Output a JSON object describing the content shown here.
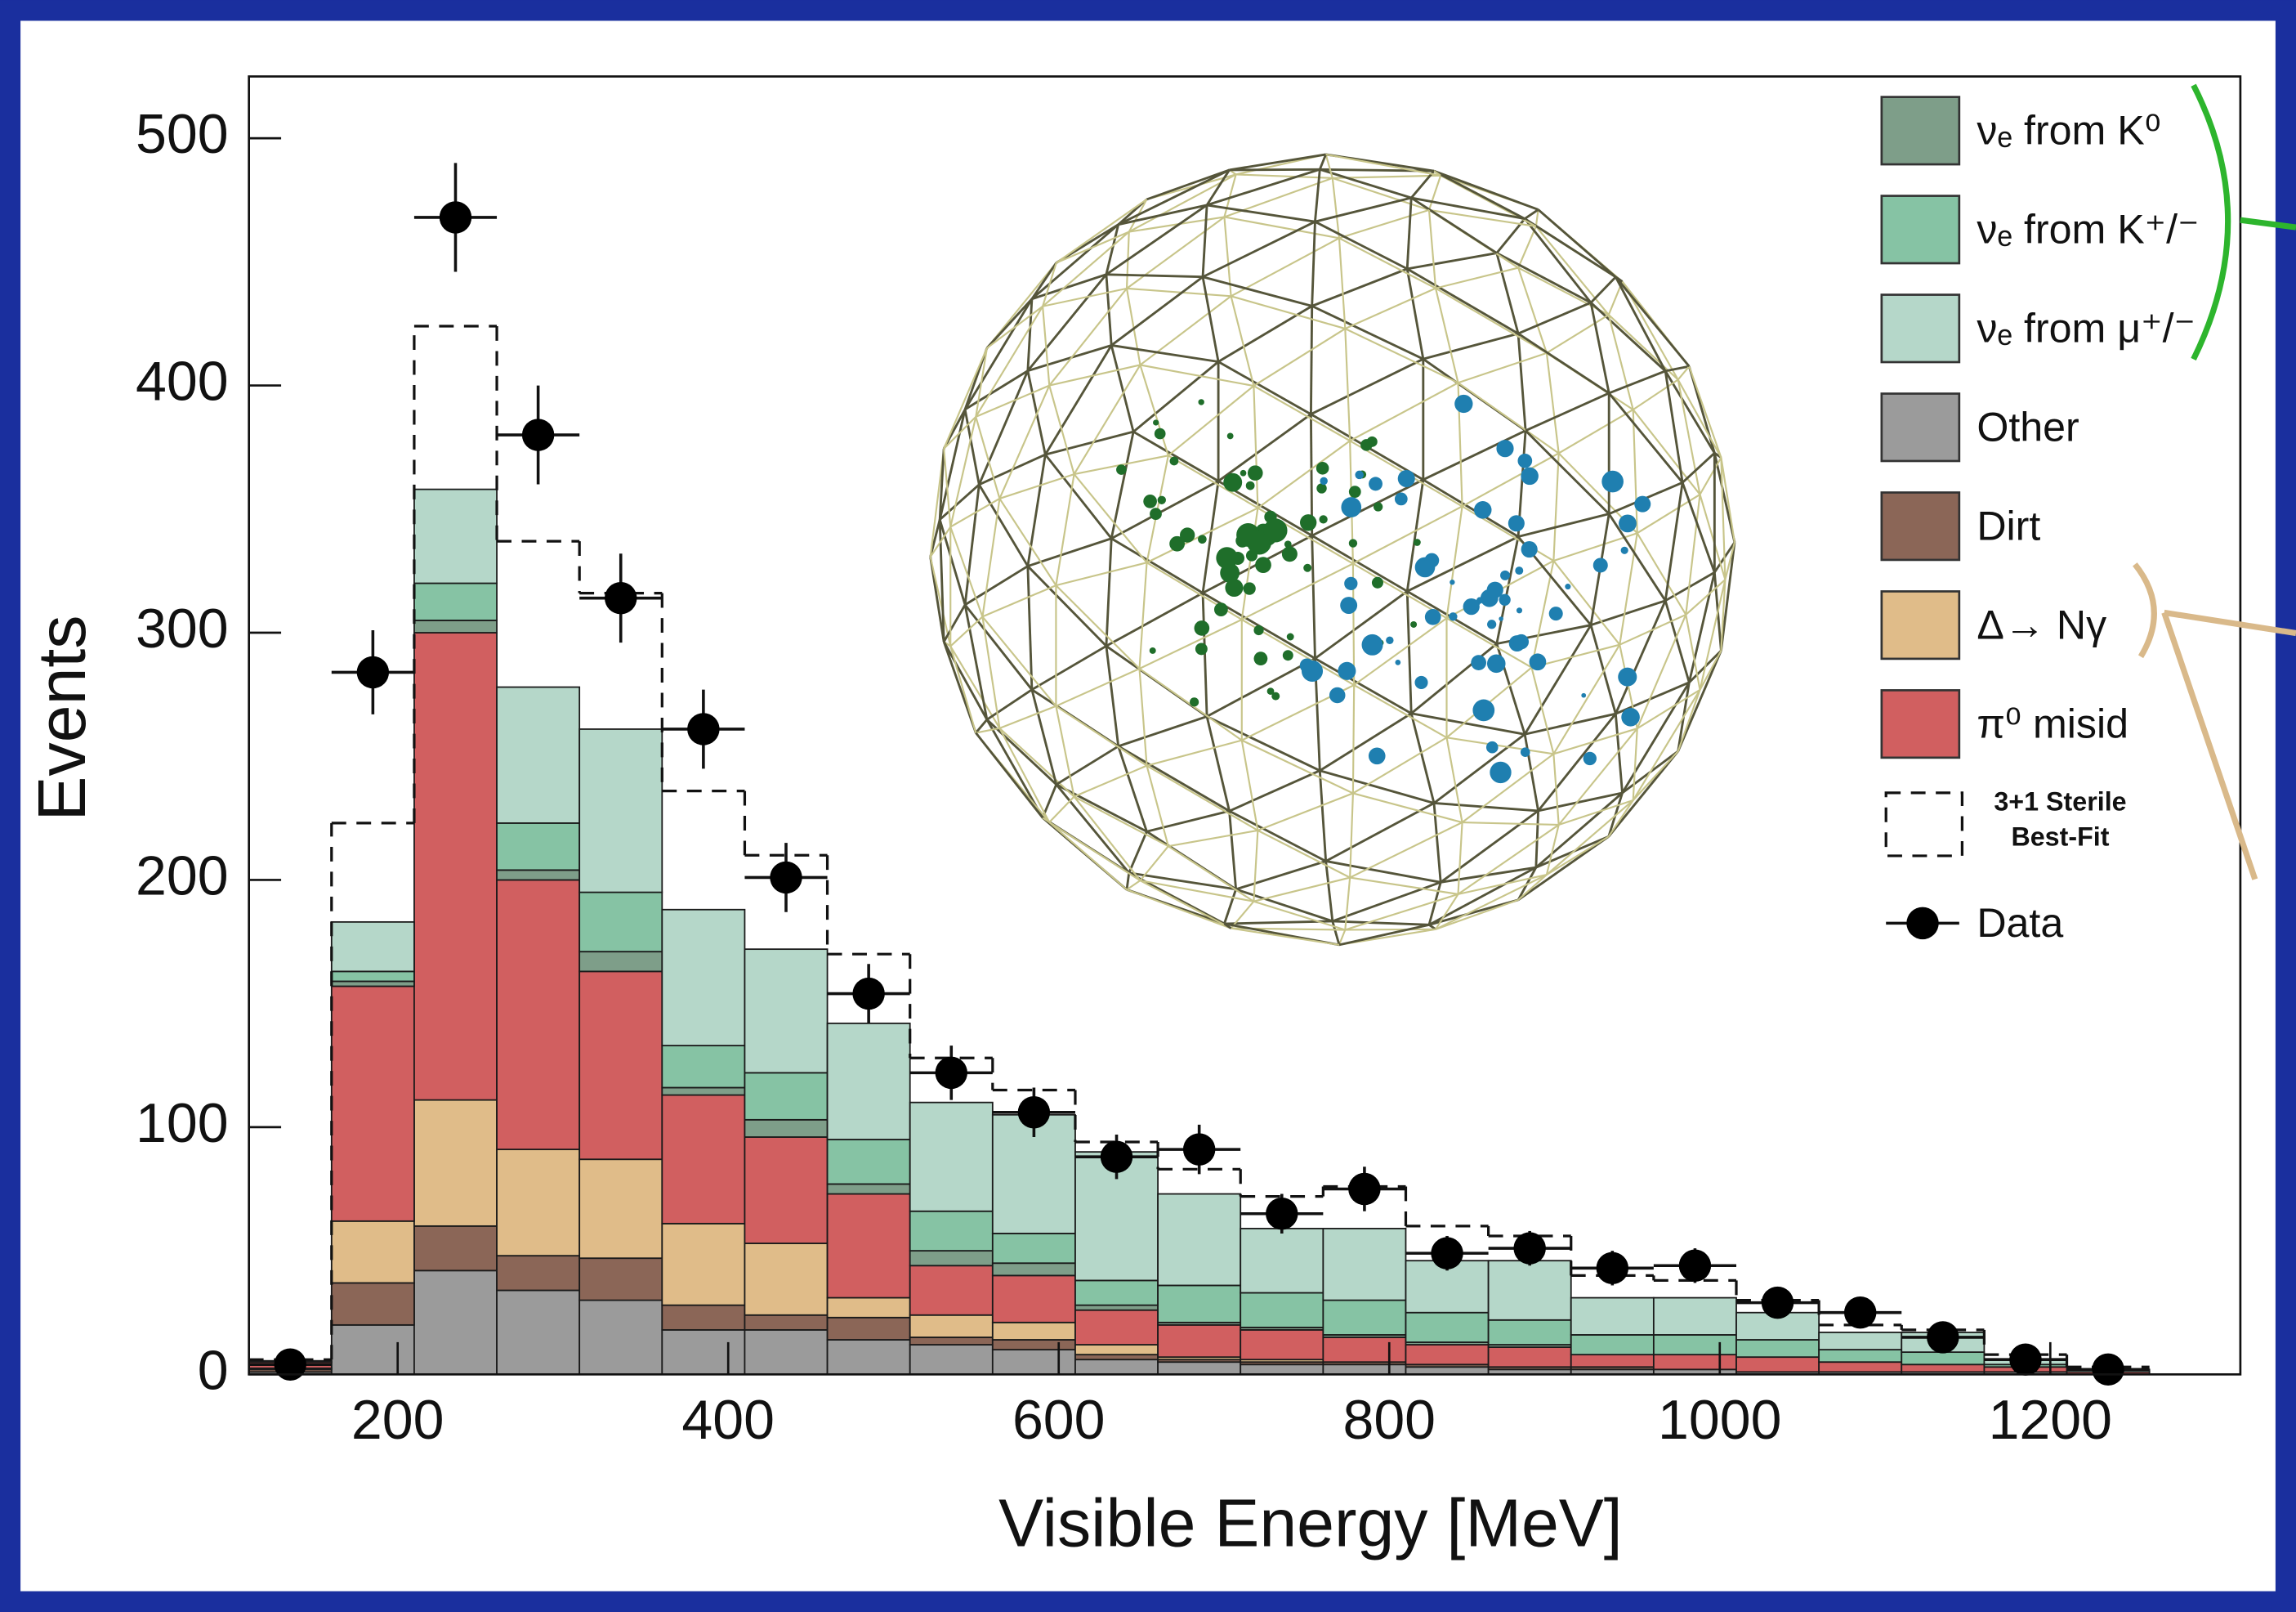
{
  "chart_data": {
    "type": "stacked_histogram",
    "xlabel": "Visible Energy [MeV]",
    "ylabel": "Events",
    "bins": [
      110,
      160,
      210,
      260,
      310,
      360,
      410,
      460,
      510,
      560,
      610,
      660,
      710,
      760,
      810,
      860,
      910,
      960,
      1010,
      1060,
      1110,
      1160,
      1210,
      1260
    ],
    "xlim": [
      110,
      1315
    ],
    "ylim": [
      0,
      525
    ],
    "xticks": [
      200,
      400,
      600,
      800,
      1000,
      1200
    ],
    "yticks": [
      0,
      100,
      200,
      300,
      400,
      500
    ],
    "series": [
      {
        "name": "Other",
        "color": "#9b9b9b",
        "values": [
          1,
          20,
          42,
          34,
          30,
          18,
          18,
          14,
          12,
          10,
          6,
          5,
          4,
          4,
          3,
          2,
          2,
          2,
          1,
          1,
          1,
          1,
          0
        ]
      },
      {
        "name": "Dirt",
        "color": "#8b6657",
        "values": [
          1,
          17,
          18,
          14,
          17,
          10,
          6,
          9,
          3,
          4,
          2,
          1,
          1,
          1,
          1,
          1,
          1,
          0,
          0,
          0,
          0,
          0,
          0
        ]
      },
      {
        "name": "Δ→ Nγ",
        "color": "#e0bc89",
        "values": [
          0.5,
          25,
          51,
          43,
          40,
          33,
          29,
          8,
          9,
          7,
          4,
          1,
          1,
          0,
          0,
          0,
          0,
          0,
          0,
          0,
          0,
          0,
          0
        ]
      },
      {
        "name": "π⁰ misid",
        "color": "#d15f60",
        "values": [
          2.5,
          95,
          189,
          109,
          76,
          52,
          43,
          42,
          20,
          19,
          14,
          13,
          12,
          10,
          8,
          8,
          5,
          6,
          6,
          4,
          3,
          2,
          1
        ]
      },
      {
        "name": "νₑ from K⁰",
        "color": "#7e9e89",
        "values": [
          0,
          2,
          5,
          4,
          8,
          3,
          7,
          4,
          6,
          5,
          2,
          1,
          1,
          1,
          1,
          1,
          0,
          0,
          0,
          0,
          0,
          0,
          0
        ]
      },
      {
        "name": "νₑ from K⁺/⁻",
        "color": "#86c3a4",
        "values": [
          0,
          4,
          15,
          19,
          24,
          17,
          19,
          18,
          16,
          12,
          10,
          15,
          14,
          14,
          12,
          10,
          8,
          8,
          7,
          5,
          5,
          1,
          0
        ]
      },
      {
        "name": "νₑ from μ⁺/⁻",
        "color": "#b5d7c9",
        "values": [
          0.5,
          20,
          38,
          55,
          66,
          55,
          50,
          47,
          44,
          48,
          52,
          37,
          26,
          29,
          21,
          24,
          15,
          15,
          11,
          7,
          8,
          2,
          1
        ]
      }
    ],
    "sterile": {
      "name": "3+1 Sterile Best-Fit",
      "values": [
        6,
        223,
        424,
        337,
        316,
        236,
        210,
        170,
        128,
        115,
        94,
        83,
        72,
        76,
        60,
        56,
        40,
        38,
        30,
        20,
        18,
        8,
        3
      ]
    },
    "data": {
      "name": "Data",
      "x": [
        135,
        185,
        235,
        285,
        335,
        385,
        435,
        485,
        535,
        585,
        635,
        685,
        735,
        785,
        835,
        885,
        935,
        985,
        1035,
        1085,
        1135,
        1185,
        1235
      ],
      "values": [
        4,
        284,
        468,
        380,
        314,
        261,
        201,
        154,
        122,
        106,
        88,
        91,
        65,
        75,
        49,
        51,
        43,
        44,
        29,
        25,
        15,
        6,
        2
      ],
      "yerr": [
        2,
        17,
        22,
        20,
        18,
        16,
        14,
        12,
        11,
        10,
        9,
        10,
        8,
        9,
        7,
        7,
        7,
        7,
        5,
        5,
        4,
        2,
        1
      ],
      "xerr": 25
    }
  }
}
